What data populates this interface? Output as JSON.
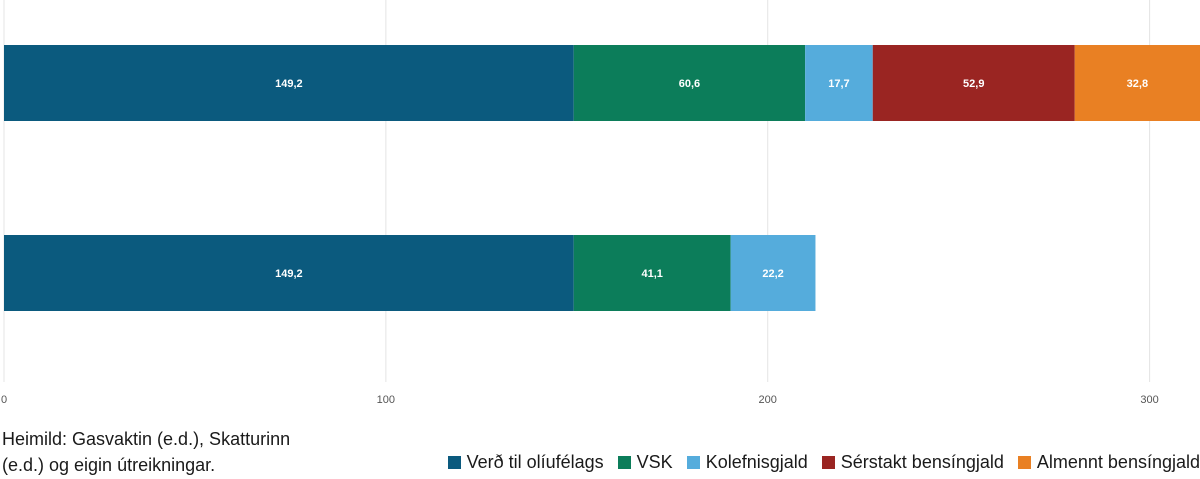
{
  "chart_data": {
    "type": "bar",
    "orientation": "horizontal",
    "stacked": true,
    "categories": [
      "",
      ""
    ],
    "series": [
      {
        "name": "Verð til olíufélags",
        "color": "#0b5a7e",
        "values": [
          149.2,
          149.2
        ],
        "labels": [
          "149,2",
          "149,2"
        ]
      },
      {
        "name": "VSK",
        "color": "#0c7d5a",
        "values": [
          60.6,
          41.1
        ],
        "labels": [
          "60,6",
          "41,1"
        ]
      },
      {
        "name": "Kolefnisgjald",
        "color": "#55acdc",
        "values": [
          17.7,
          22.2
        ],
        "labels": [
          "17,7",
          "22,2"
        ]
      },
      {
        "name": "Sérstakt bensíngjald",
        "color": "#9a2522",
        "values": [
          52.9,
          null
        ],
        "labels": [
          "52,9",
          ""
        ]
      },
      {
        "name": "Almennt bensíngjald",
        "color": "#e98023",
        "values": [
          32.8,
          null
        ],
        "labels": [
          "32,8",
          ""
        ]
      }
    ],
    "xlim": [
      0,
      313.2
    ],
    "xticks": [
      0,
      100,
      200,
      300
    ],
    "xtick_labels": [
      "0",
      "100",
      "200",
      "300"
    ],
    "grid": true,
    "legend_position": "bottom-right"
  },
  "source": {
    "line1": "Heimild: Gasvaktin (e.d.), Skatturinn",
    "line2": "(e.d.) og eigin útreikningar."
  },
  "legend": {
    "items": [
      {
        "label": "Verð til olíufélags",
        "color": "#0b5a7e"
      },
      {
        "label": "VSK",
        "color": "#0c7d5a"
      },
      {
        "label": "Kolefnisgjald",
        "color": "#55acdc"
      },
      {
        "label": "Sérstakt bensíngjald",
        "color": "#9a2522"
      },
      {
        "label": "Almennt bensíngjald",
        "color": "#e98023"
      }
    ]
  }
}
